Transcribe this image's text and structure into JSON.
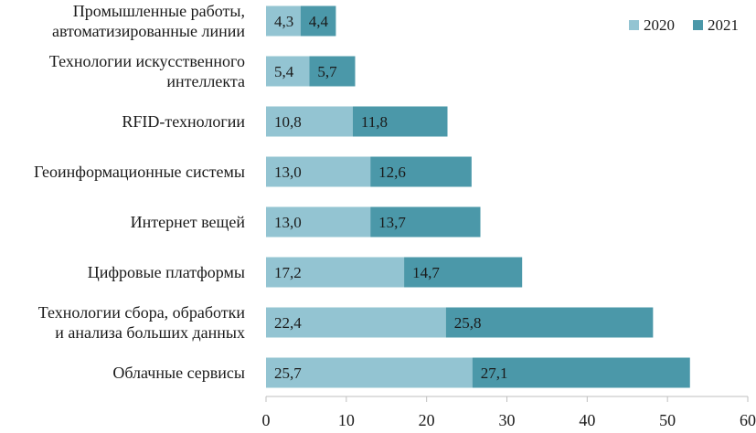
{
  "chart_data": {
    "type": "bar",
    "orientation": "horizontal",
    "stacked": true,
    "categories": [
      [
        "Промышленные работы,",
        "автоматизированные линии"
      ],
      [
        "Технологии искусственного",
        "интеллекта"
      ],
      [
        "RFID-технологии"
      ],
      [
        "Геоинформационные системы"
      ],
      [
        "Интернет вещей"
      ],
      [
        "Цифровые платформы"
      ],
      [
        "Технологии сбора, обработки",
        "и анализа больших данных"
      ],
      [
        "Облачные сервисы"
      ]
    ],
    "series": [
      {
        "name": "2020",
        "color": "#93c4d2",
        "values": [
          4.3,
          5.4,
          10.8,
          13.0,
          13.0,
          17.2,
          22.4,
          25.7
        ],
        "labels": [
          "4,3",
          "5,4",
          "10,8",
          "13,0",
          "13,0",
          "17,2",
          "22,4",
          "25,7"
        ]
      },
      {
        "name": "2021",
        "color": "#4b98a9",
        "values": [
          4.4,
          5.7,
          11.8,
          12.6,
          13.7,
          14.7,
          25.8,
          27.1
        ],
        "labels": [
          "4,4",
          "5,7",
          "11,8",
          "12,6",
          "13,7",
          "14,7",
          "25,8",
          "27,1"
        ]
      }
    ],
    "xlim": [
      0,
      60
    ],
    "xticks": [
      0,
      10,
      20,
      30,
      40,
      50,
      60
    ],
    "xlabel": "",
    "ylabel": "",
    "title": "",
    "grid": false,
    "legend": "top-right"
  }
}
